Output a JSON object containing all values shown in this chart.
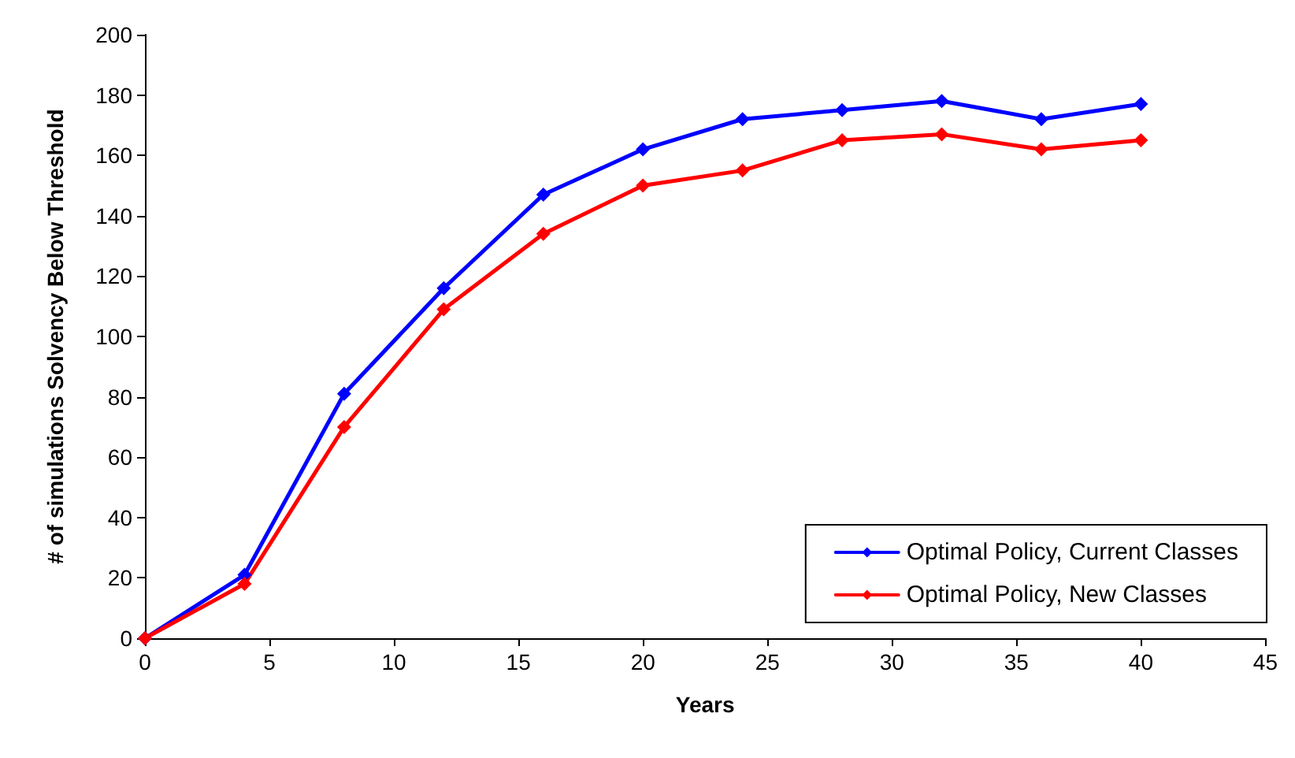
{
  "chart_data": {
    "type": "line",
    "xlabel": "Years",
    "ylabel": "# of simulations Solvency Below Threshold",
    "x": [
      0,
      4,
      8,
      12,
      16,
      20,
      24,
      28,
      32,
      36,
      40
    ],
    "series": [
      {
        "name": "Optimal Policy, Current Classes",
        "color": "#0000ff",
        "values": [
          0,
          21,
          81,
          116,
          147,
          162,
          172,
          175,
          178,
          172,
          177
        ]
      },
      {
        "name": "Optimal Policy, New Classes",
        "color": "#ff0000",
        "values": [
          0,
          18,
          70,
          109,
          134,
          150,
          155,
          165,
          167,
          162,
          165
        ]
      }
    ],
    "xlim": [
      0,
      45
    ],
    "xticks": [
      0,
      5,
      10,
      15,
      20,
      25,
      30,
      35,
      40,
      45
    ],
    "ylim": [
      0,
      200
    ],
    "yticks": [
      0,
      20,
      40,
      60,
      80,
      100,
      120,
      140,
      160,
      180,
      200
    ],
    "grid": false,
    "legend": "bottom right",
    "marker": "diamond",
    "line_style": "solid"
  }
}
